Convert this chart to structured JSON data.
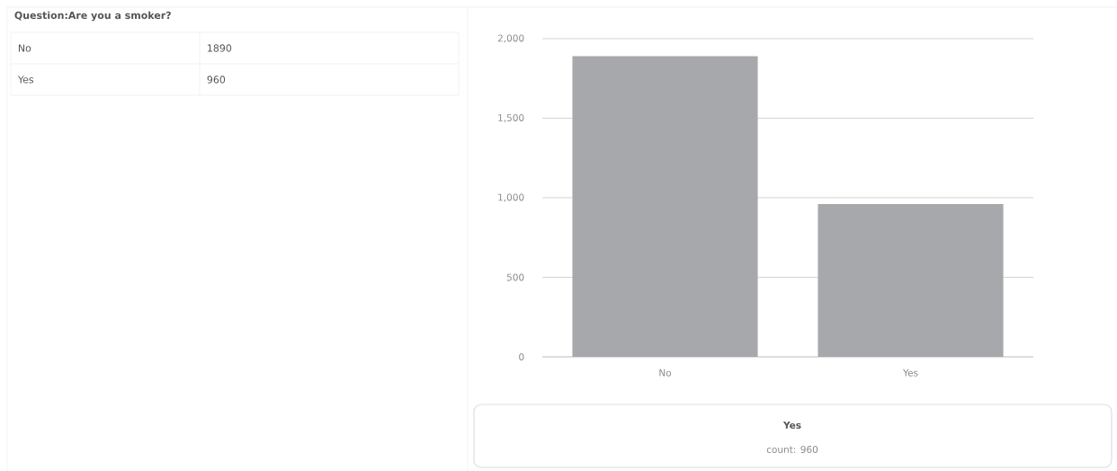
{
  "chart_data": [
    {
      "type": "other",
      "title": "Question:Are you a smoker?",
      "categories": [
        "No",
        "Yes"
      ],
      "values": [
        1890,
        960
      ],
      "value_labels": [
        "1890",
        "960"
      ]
    },
    {
      "type": "bar",
      "categories": [
        "No",
        "Yes"
      ],
      "values": [
        1890,
        960
      ],
      "color": "#a7a8ab",
      "ylim": [
        0,
        2000
      ],
      "yticks": [
        0,
        500,
        {
          "value": 1000,
          "label": "1,000"
        },
        {
          "value": 1500,
          "label": "1,500"
        },
        {
          "value": 2000,
          "label": "2,000"
        }
      ],
      "grid": "y",
      "annotations": [
        "Yes",
        "count: 960"
      ]
    }
  ]
}
